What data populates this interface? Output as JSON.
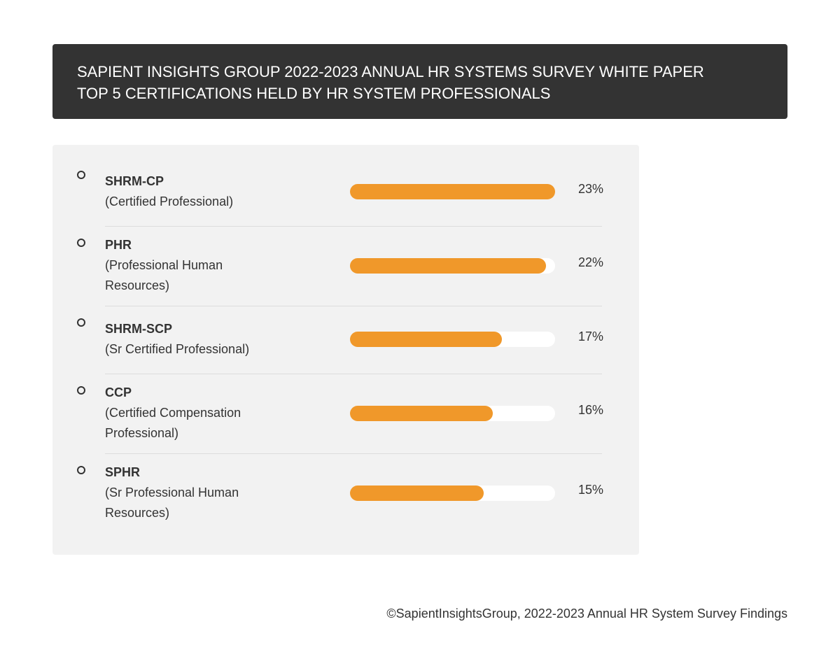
{
  "chart_data": {
    "type": "bar",
    "title": "SAPIENT INSIGHTS GROUP 2022-2023 ANNUAL HR SYSTEMS SURVEY WHITE PAPER",
    "subtitle": "TOP 5 CERTIFICATIONS HELD BY HR SYSTEM PROFESSIONALS",
    "categories": [
      "SHRM-CP",
      "PHR",
      "SHRM-SCP",
      "CCP",
      "SPHR"
    ],
    "descriptions": [
      "(Certified Professional)",
      "(Professional Human Resources)",
      "(Sr Certified Professional)",
      "(Certified Compensation Professional)",
      "(Sr Professional Human Resources)"
    ],
    "values": [
      23,
      22,
      17,
      16,
      15
    ],
    "value_labels": [
      "23%",
      "22%",
      "17%",
      "16%",
      "15%"
    ],
    "color": "#f0982a",
    "track_color": "#ffffff",
    "xlim": [
      0,
      23
    ],
    "source": "©SapientInsightsGroup, 2022-2023 Annual HR System Survey Findings"
  }
}
